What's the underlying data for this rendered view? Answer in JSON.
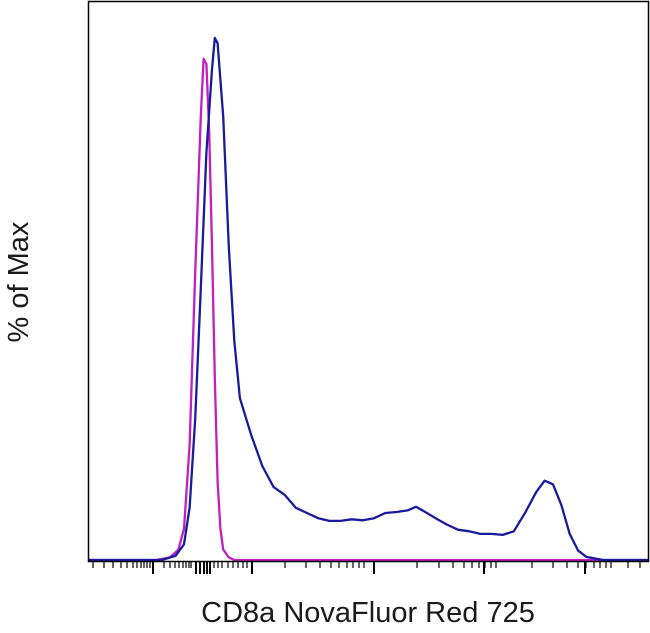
{
  "chart_data": {
    "type": "line",
    "title": "",
    "xlabel": "CD8a NovaFluor Red 725",
    "ylabel": "% of Max",
    "x_scale": "biexponential",
    "x_tick_labels": false,
    "y_tick_labels": false,
    "ylim": [
      0,
      100
    ],
    "grid": false,
    "legend": "none",
    "series": [
      {
        "color": "#c020c0",
        "points": [
          [
            0.0,
            0
          ],
          [
            0.12,
            0
          ],
          [
            0.145,
            0.5
          ],
          [
            0.16,
            2
          ],
          [
            0.17,
            6
          ],
          [
            0.18,
            22
          ],
          [
            0.19,
            55
          ],
          [
            0.2,
            85
          ],
          [
            0.205,
            96
          ],
          [
            0.21,
            95
          ],
          [
            0.215,
            82
          ],
          [
            0.22,
            60
          ],
          [
            0.225,
            35
          ],
          [
            0.23,
            15
          ],
          [
            0.235,
            6
          ],
          [
            0.24,
            2
          ],
          [
            0.25,
            0.5
          ],
          [
            0.26,
            0
          ],
          [
            1.0,
            0
          ]
        ]
      },
      {
        "color": "#1a1a9c",
        "points": [
          [
            0.0,
            0
          ],
          [
            0.13,
            0
          ],
          [
            0.155,
            0.8
          ],
          [
            0.17,
            3
          ],
          [
            0.18,
            10
          ],
          [
            0.19,
            27
          ],
          [
            0.2,
            52
          ],
          [
            0.21,
            78
          ],
          [
            0.22,
            94
          ],
          [
            0.225,
            100
          ],
          [
            0.23,
            99
          ],
          [
            0.24,
            85
          ],
          [
            0.25,
            60
          ],
          [
            0.26,
            42
          ],
          [
            0.27,
            31
          ],
          [
            0.29,
            24
          ],
          [
            0.31,
            18
          ],
          [
            0.33,
            14
          ],
          [
            0.35,
            12.5
          ],
          [
            0.37,
            10
          ],
          [
            0.39,
            9
          ],
          [
            0.41,
            8
          ],
          [
            0.43,
            7.5
          ],
          [
            0.45,
            7.5
          ],
          [
            0.47,
            7.8
          ],
          [
            0.49,
            7.6
          ],
          [
            0.51,
            8
          ],
          [
            0.53,
            9
          ],
          [
            0.55,
            9.2
          ],
          [
            0.57,
            9.5
          ],
          [
            0.585,
            10.2
          ],
          [
            0.6,
            9.3
          ],
          [
            0.62,
            8
          ],
          [
            0.64,
            6.8
          ],
          [
            0.66,
            5.8
          ],
          [
            0.68,
            5.5
          ],
          [
            0.7,
            5
          ],
          [
            0.72,
            5
          ],
          [
            0.74,
            4.8
          ],
          [
            0.76,
            5.5
          ],
          [
            0.78,
            9
          ],
          [
            0.8,
            13
          ],
          [
            0.815,
            15.2
          ],
          [
            0.83,
            14.5
          ],
          [
            0.845,
            10.5
          ],
          [
            0.86,
            5
          ],
          [
            0.875,
            1.8
          ],
          [
            0.89,
            0.6
          ],
          [
            0.92,
            0
          ],
          [
            1.0,
            0
          ]
        ]
      }
    ]
  }
}
